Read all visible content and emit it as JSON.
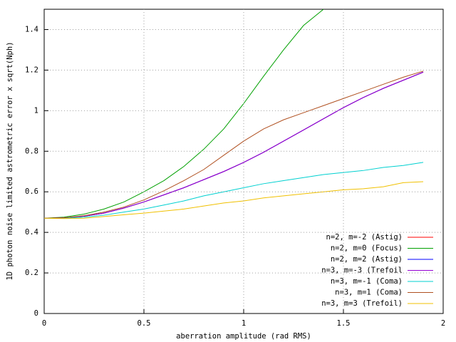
{
  "chart_data": {
    "type": "line",
    "x_label": "aberration amplitude (rad RMS)",
    "y_label": "1D photon noise limited astrometric error x sqrt(Nph)",
    "x": [
      0,
      0.1,
      0.2,
      0.3,
      0.4,
      0.5,
      0.6,
      0.7,
      0.8,
      0.9,
      1.0,
      1.1,
      1.2,
      1.3,
      1.4,
      1.5,
      1.6,
      1.7,
      1.8,
      1.9
    ],
    "series": [
      {
        "name": "n=2, m=-2 (Astig)",
        "color": "#ff0000",
        "values": [
          0.47,
          0.472,
          0.48,
          0.495,
          0.52,
          0.55,
          0.585,
          0.62,
          0.66,
          0.7,
          0.745,
          0.795,
          0.85,
          0.905,
          0.96,
          1.015,
          1.065,
          1.11,
          1.15,
          1.19
        ]
      },
      {
        "name": "n=2, m=0 (Focus)",
        "color": "#00a000",
        "values": [
          0.47,
          0.475,
          0.49,
          0.515,
          0.55,
          0.6,
          0.655,
          0.725,
          0.81,
          0.91,
          1.035,
          1.17,
          1.3,
          1.42,
          1.5,
          null,
          null,
          null,
          null,
          null
        ]
      },
      {
        "name": "n=2, m=2 (Astig)",
        "color": "#0000ff",
        "values": [
          0.47,
          0.472,
          0.48,
          0.495,
          0.52,
          0.55,
          0.585,
          0.62,
          0.66,
          0.7,
          0.745,
          0.795,
          0.85,
          0.905,
          0.96,
          1.015,
          1.065,
          1.11,
          1.15,
          1.19
        ]
      },
      {
        "name": "n=3, m=-3 (Trefoil",
        "color": "#9400d3",
        "values": [
          0.47,
          0.472,
          0.48,
          0.495,
          0.52,
          0.55,
          0.585,
          0.62,
          0.66,
          0.7,
          0.745,
          0.795,
          0.85,
          0.905,
          0.96,
          1.015,
          1.065,
          1.11,
          1.15,
          1.19
        ]
      },
      {
        "name": "n=3, m=-1 (Coma)",
        "color": "#00d0d0",
        "values": [
          0.47,
          0.47,
          0.475,
          0.485,
          0.5,
          0.515,
          0.535,
          0.555,
          0.58,
          0.6,
          0.62,
          0.64,
          0.655,
          0.67,
          0.685,
          0.695,
          0.705,
          0.72,
          0.73,
          0.745
        ]
      },
      {
        "name": "n=3, m=1 (Coma)",
        "color": "#b05020",
        "values": [
          0.47,
          0.472,
          0.482,
          0.5,
          0.525,
          0.56,
          0.605,
          0.655,
          0.71,
          0.78,
          0.85,
          0.91,
          0.955,
          0.99,
          1.025,
          1.06,
          1.095,
          1.13,
          1.165,
          1.195
        ]
      },
      {
        "name": "n=3, m=3 (Trefoil)",
        "color": "#f0c000",
        "values": [
          0.47,
          0.468,
          0.47,
          0.478,
          0.487,
          0.495,
          0.505,
          0.515,
          0.53,
          0.545,
          0.555,
          0.57,
          0.58,
          0.59,
          0.6,
          0.61,
          0.615,
          0.625,
          0.645,
          0.65
        ]
      }
    ],
    "xlim": [
      0,
      2
    ],
    "xticks": [
      0,
      0.5,
      1,
      1.5,
      2
    ],
    "ylim": [
      0,
      1.5
    ],
    "yticks": [
      0,
      0.2,
      0.4,
      0.6,
      0.8,
      1,
      1.2,
      1.4
    ],
    "grid": true,
    "legend": "bottom-right"
  }
}
